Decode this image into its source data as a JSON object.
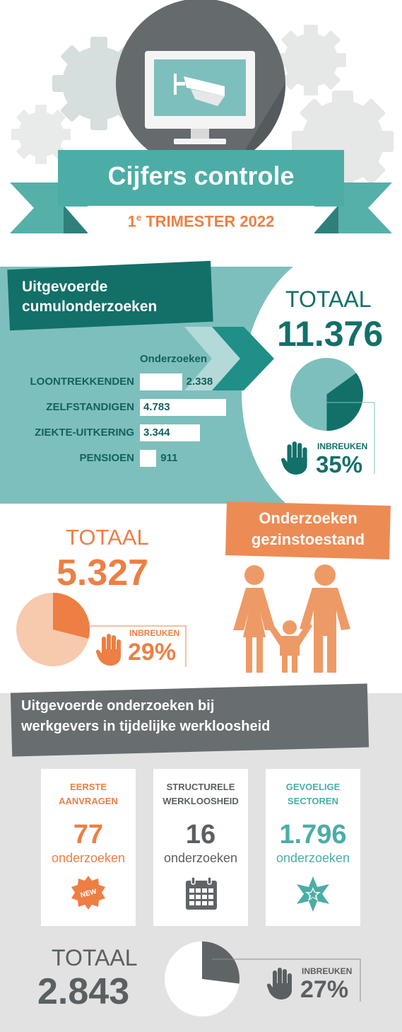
{
  "colors": {
    "teal": "#7dbfbc",
    "teal_light": "#b9dcda",
    "teal_dark": "#127069",
    "banner_teal": "#4cada6",
    "orange": "#ed7f44",
    "orange_light": "#f7c9ad",
    "gray_band": "#e2e2e2",
    "gray_dark": "#5f6466",
    "gray_text": "#5a5f62"
  },
  "header": {
    "title": "Cijfers controle",
    "subtitle_prefix": "1",
    "subtitle_sup": "e",
    "subtitle_rest": " TRIMESTER 2022",
    "icon": "surveillance-camera-icon"
  },
  "cumul": {
    "heading_line1": "Uitgevoerde",
    "heading_line2": "cumulonderzoeken",
    "column_header": "Onderzoeken",
    "total_label": "TOTAAL",
    "total_value": "11.376",
    "violations_label": "INBREUKEN",
    "violations_value": "35%",
    "icon": "hand-icon"
  },
  "gezin": {
    "heading_line1": "Onderzoeken",
    "heading_line2": "gezinstoestand",
    "total_label": "TOTAAL",
    "total_value": "5.327",
    "violations_label": "INBREUKEN",
    "violations_value": "29%",
    "icon": "family-icon"
  },
  "werkgevers": {
    "heading_line1": "Uitgevoerde onderzoeken bij",
    "heading_line2": "werkgevers in tijdelijke werkloosheid",
    "cards": [
      {
        "line1": "EERSTE",
        "line2": "AANVRAGEN",
        "number": "77",
        "unit": "onderzoeken",
        "icon": "new-badge-icon",
        "badge_text": "NEW"
      },
      {
        "line1": "STRUCTURELE",
        "line2": "WERKLOOSHEID",
        "number": "16",
        "unit": "onderzoeken",
        "icon": "calendar-icon"
      },
      {
        "line1": "GEVOELIGE",
        "line2": "SECTOREN",
        "number": "1.796",
        "unit": "onderzoeken",
        "icon": "star-icon"
      }
    ],
    "total_label": "TOTAAL",
    "total_value": "2.843",
    "violations_label": "INBREUKEN",
    "violations_value": "27%",
    "icon": "hand-icon"
  },
  "chart_data": [
    {
      "type": "bar",
      "title": "Uitgevoerde cumulonderzoeken",
      "categories": [
        "LOONTREKKENDEN",
        "ZELFSTANDIGEN",
        "ZIEKTE-UITKERING",
        "PENSIOEN"
      ],
      "values": [
        2338,
        4783,
        3344,
        911
      ],
      "value_labels": [
        "2.338",
        "4.783",
        "3.344",
        "911"
      ],
      "ylabel": "Onderzoeken"
    },
    {
      "type": "pie",
      "labels": [
        "INBREUKEN",
        ""
      ],
      "values": [
        35,
        65
      ],
      "colors": [
        "#127069",
        "#7dbfbc"
      ]
    },
    {
      "type": "pie",
      "labels": [
        "INBREUKEN",
        ""
      ],
      "values": [
        29,
        71
      ],
      "colors": [
        "#ed7f44",
        "#f7c9ad"
      ]
    },
    {
      "type": "pie",
      "labels": [
        "INBREUKEN",
        ""
      ],
      "values": [
        27,
        73
      ],
      "colors": [
        "#5f6466",
        "#ffffff"
      ]
    }
  ]
}
